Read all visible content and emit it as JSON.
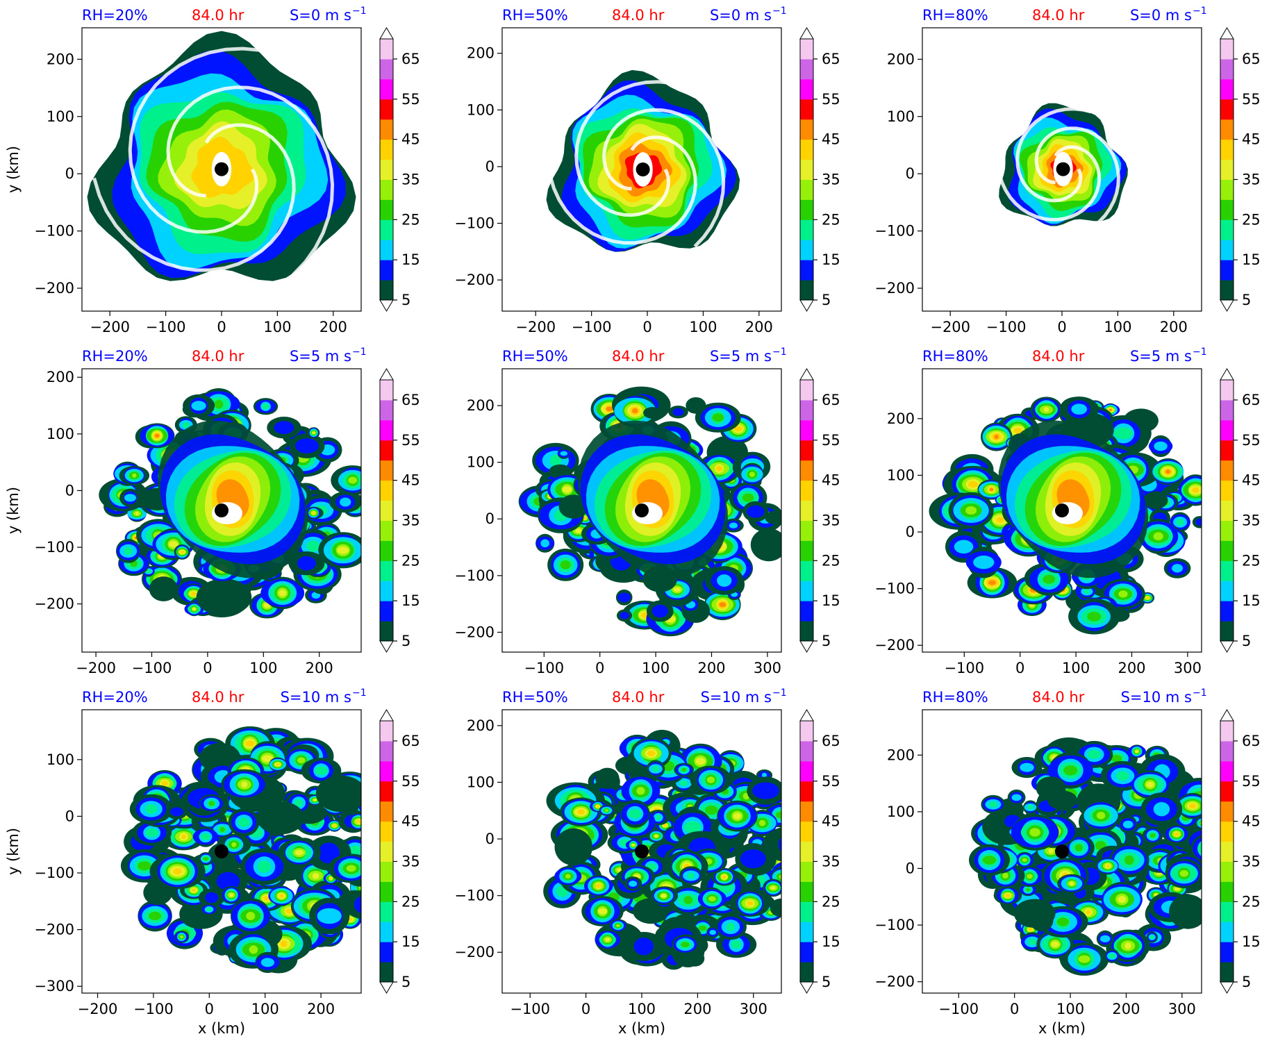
{
  "figure": {
    "shared": {
      "time_label": "84.0 hr",
      "time_color": "#ff0000",
      "label_color": "#0000ff",
      "xlabel": "x (km)",
      "ylabel": "y (km)",
      "colorbar_ticks": [
        "5",
        "15",
        "25",
        "35",
        "45",
        "55",
        "65"
      ],
      "colorbar_levels": [
        5,
        10,
        15,
        20,
        25,
        30,
        35,
        40,
        45,
        50,
        55,
        60,
        65,
        70
      ],
      "colorbar_colors": [
        "#004d33",
        "#0014ff",
        "#00d2ff",
        "#00f08c",
        "#28d200",
        "#96f00a",
        "#e6f028",
        "#ffd200",
        "#ff8c00",
        "#ff0000",
        "#ff00ff",
        "#cc66e6",
        "#f5c8f0"
      ],
      "palette": [
        "#004d33",
        "#0014ff",
        "#00d2ff",
        "#00f08c",
        "#28d200",
        "#96f00a",
        "#e6f028",
        "#ffd200",
        "#ff8c00",
        "#ff0000"
      ]
    },
    "panels": [
      {
        "rh": "RH=20%",
        "s": "S=0 m s",
        "sup": "−1",
        "cx": 0,
        "cy": 8,
        "xlim": [
          -250,
          250
        ],
        "ylim": [
          -240,
          255
        ],
        "xticks": [
          "−200",
          "−100",
          "0",
          "100",
          "200"
        ],
        "xvals": [
          -200,
          -100,
          0,
          100,
          200
        ],
        "yticks": [
          "200",
          "100",
          "0",
          "−100",
          "−200"
        ],
        "yvals": [
          200,
          100,
          0,
          -100,
          -200
        ],
        "show_ylabel": true,
        "show_xlabel": false
      },
      {
        "rh": "RH=50%",
        "s": "S=0 m s",
        "sup": "−1",
        "cx": -8,
        "cy": -5,
        "xlim": [
          -260,
          240
        ],
        "ylim": [
          -255,
          245
        ],
        "xticks": [
          "−200",
          "−100",
          "0",
          "100",
          "200"
        ],
        "xvals": [
          -200,
          -100,
          0,
          100,
          200
        ],
        "yticks": [
          "200",
          "100",
          "0",
          "−100",
          "−200"
        ],
        "yvals": [
          200,
          100,
          0,
          -100,
          -200
        ],
        "show_ylabel": false,
        "show_xlabel": false
      },
      {
        "rh": "RH=80%",
        "s": "S=0 m s",
        "sup": "−1",
        "cx": 2,
        "cy": 8,
        "xlim": [
          -250,
          250
        ],
        "ylim": [
          -240,
          255
        ],
        "xticks": [
          "−200",
          "−100",
          "0",
          "100",
          "200"
        ],
        "xvals": [
          -200,
          -100,
          0,
          100,
          200
        ],
        "yticks": [
          "200",
          "100",
          "0",
          "−100",
          "−200"
        ],
        "yvals": [
          200,
          100,
          0,
          -100,
          -200
        ],
        "show_ylabel": false,
        "show_xlabel": false
      },
      {
        "rh": "RH=20%",
        "s": "S=5 m s",
        "sup": "−1",
        "cx": 25,
        "cy": -35,
        "xlim": [
          -225,
          275
        ],
        "ylim": [
          -285,
          215
        ],
        "xticks": [
          "−200",
          "−100",
          "0",
          "100",
          "200"
        ],
        "xvals": [
          -200,
          -100,
          0,
          100,
          200
        ],
        "yticks": [
          "200",
          "100",
          "0",
          "−100",
          "−200"
        ],
        "yvals": [
          200,
          100,
          0,
          -100,
          -200
        ],
        "show_ylabel": true,
        "show_xlabel": false
      },
      {
        "rh": "RH=50%",
        "s": "S=5 m s",
        "sup": "−1",
        "cx": 75,
        "cy": 15,
        "xlim": [
          -175,
          325
        ],
        "ylim": [
          -235,
          265
        ],
        "xticks": [
          "−100",
          "0",
          "100",
          "200",
          "300"
        ],
        "xvals": [
          -100,
          0,
          100,
          200,
          300
        ],
        "yticks": [
          "200",
          "100",
          "0",
          "−100",
          "−200"
        ],
        "yvals": [
          200,
          100,
          0,
          -100,
          -200
        ],
        "show_ylabel": false,
        "show_xlabel": false
      },
      {
        "rh": "RH=80%",
        "s": "S=5 m s",
        "sup": "−1",
        "cx": 75,
        "cy": 38,
        "xlim": [
          -175,
          325
        ],
        "ylim": [
          -212,
          288
        ],
        "xticks": [
          "−100",
          "0",
          "100",
          "200",
          "300"
        ],
        "xvals": [
          -100,
          0,
          100,
          200,
          300
        ],
        "yticks": [
          "200",
          "100",
          "0",
          "−100",
          "−200"
        ],
        "yvals": [
          200,
          100,
          0,
          -100,
          -200
        ],
        "show_ylabel": false,
        "show_xlabel": false
      },
      {
        "rh": "RH=20%",
        "s": "S=10 m s",
        "sup": "−1",
        "cx": 22,
        "cy": -62,
        "xlim": [
          -228,
          272
        ],
        "ylim": [
          -312,
          188
        ],
        "xticks": [
          "−200",
          "−100",
          "0",
          "100",
          "200"
        ],
        "xvals": [
          -200,
          -100,
          0,
          100,
          200
        ],
        "yticks": [
          "100",
          "0",
          "−100",
          "−200",
          "−300"
        ],
        "yvals": [
          100,
          0,
          -100,
          -200,
          -300
        ],
        "show_ylabel": true,
        "show_xlabel": true
      },
      {
        "rh": "RH=50%",
        "s": "S=10 m s",
        "sup": "−1",
        "cx": 100,
        "cy": -22,
        "xlim": [
          -150,
          350
        ],
        "ylim": [
          -272,
          228
        ],
        "xticks": [
          "−100",
          "0",
          "100",
          "200",
          "300"
        ],
        "xvals": [
          -100,
          0,
          100,
          200,
          300
        ],
        "yticks": [
          "200",
          "100",
          "0",
          "−100",
          "−200"
        ],
        "yvals": [
          200,
          100,
          0,
          -100,
          -200
        ],
        "show_ylabel": false,
        "show_xlabel": true
      },
      {
        "rh": "RH=80%",
        "s": "S=10 m s",
        "sup": "−1",
        "cx": 85,
        "cy": 30,
        "xlim": [
          -165,
          335
        ],
        "ylim": [
          -220,
          280
        ],
        "xticks": [
          "−100",
          "0",
          "100",
          "200",
          "300"
        ],
        "xvals": [
          -100,
          0,
          100,
          200,
          300
        ],
        "yticks": [
          "200",
          "100",
          "0",
          "−100",
          "−200"
        ],
        "yvals": [
          200,
          100,
          0,
          -100,
          -200
        ],
        "show_ylabel": false,
        "show_xlabel": true
      }
    ]
  },
  "chart_data": [
    {
      "type": "heatmap",
      "panel_title": [
        "RH=20%",
        "84.0 hr",
        "S=0 m s−1"
      ],
      "xlabel": "",
      "ylabel": "y (km)",
      "xlim": [
        -250,
        250
      ],
      "ylim": [
        -240,
        255
      ],
      "center": [
        0,
        8
      ],
      "colorbar_ticks": [
        5,
        15,
        25,
        35,
        45,
        55,
        65
      ]
    },
    {
      "type": "heatmap",
      "panel_title": [
        "RH=50%",
        "84.0 hr",
        "S=0 m s−1"
      ],
      "xlabel": "",
      "ylabel": "",
      "xlim": [
        -260,
        240
      ],
      "ylim": [
        -255,
        245
      ],
      "center": [
        -8,
        -5
      ],
      "colorbar_ticks": [
        5,
        15,
        25,
        35,
        45,
        55,
        65
      ]
    },
    {
      "type": "heatmap",
      "panel_title": [
        "RH=80%",
        "84.0 hr",
        "S=0 m s−1"
      ],
      "xlabel": "",
      "ylabel": "",
      "xlim": [
        -250,
        250
      ],
      "ylim": [
        -240,
        255
      ],
      "center": [
        2,
        8
      ],
      "colorbar_ticks": [
        5,
        15,
        25,
        35,
        45,
        55,
        65
      ]
    },
    {
      "type": "heatmap",
      "panel_title": [
        "RH=20%",
        "84.0 hr",
        "S=5 m s−1"
      ],
      "xlabel": "",
      "ylabel": "y (km)",
      "xlim": [
        -225,
        275
      ],
      "ylim": [
        -285,
        215
      ],
      "center": [
        25,
        -35
      ],
      "colorbar_ticks": [
        5,
        15,
        25,
        35,
        45,
        55,
        65
      ]
    },
    {
      "type": "heatmap",
      "panel_title": [
        "RH=50%",
        "84.0 hr",
        "S=5 m s−1"
      ],
      "xlabel": "",
      "ylabel": "",
      "xlim": [
        -175,
        325
      ],
      "ylim": [
        -235,
        265
      ],
      "center": [
        75,
        15
      ],
      "colorbar_ticks": [
        5,
        15,
        25,
        35,
        45,
        55,
        65
      ]
    },
    {
      "type": "heatmap",
      "panel_title": [
        "RH=80%",
        "84.0 hr",
        "S=5 m s−1"
      ],
      "xlabel": "",
      "ylabel": "",
      "xlim": [
        -175,
        325
      ],
      "ylim": [
        -212,
        288
      ],
      "center": [
        75,
        38
      ],
      "colorbar_ticks": [
        5,
        15,
        25,
        35,
        45,
        55,
        65
      ]
    },
    {
      "type": "heatmap",
      "panel_title": [
        "RH=20%",
        "84.0 hr",
        "S=10 m s−1"
      ],
      "xlabel": "x (km)",
      "ylabel": "y (km)",
      "xlim": [
        -228,
        272
      ],
      "ylim": [
        -312,
        188
      ],
      "center": [
        22,
        -62
      ],
      "colorbar_ticks": [
        5,
        15,
        25,
        35,
        45,
        55,
        65
      ]
    },
    {
      "type": "heatmap",
      "panel_title": [
        "RH=50%",
        "84.0 hr",
        "S=10 m s−1"
      ],
      "xlabel": "x (km)",
      "ylabel": "",
      "xlim": [
        -150,
        350
      ],
      "ylim": [
        -272,
        228
      ],
      "center": [
        100,
        -22
      ],
      "colorbar_ticks": [
        5,
        15,
        25,
        35,
        45,
        55,
        65
      ]
    },
    {
      "type": "heatmap",
      "panel_title": [
        "RH=80%",
        "84.0 hr",
        "S=10 m s−1"
      ],
      "xlabel": "x (km)",
      "ylabel": "",
      "xlim": [
        -165,
        335
      ],
      "ylim": [
        -220,
        280
      ],
      "center": [
        85,
        30
      ],
      "colorbar_ticks": [
        5,
        15,
        25,
        35,
        45,
        55,
        65
      ]
    }
  ]
}
